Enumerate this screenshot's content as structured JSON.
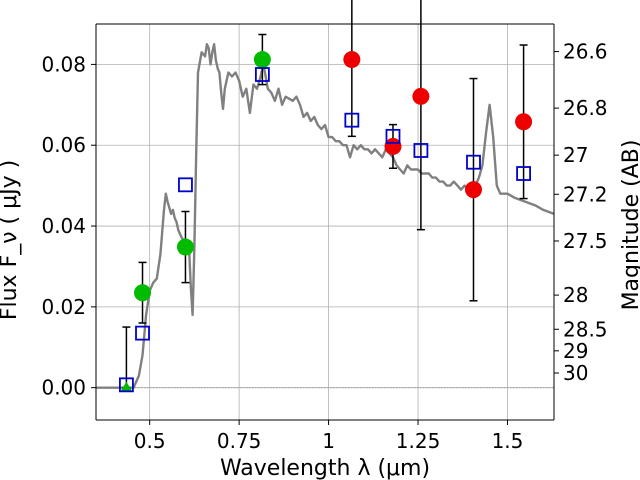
{
  "chart_data": {
    "type": "scatter",
    "title": "",
    "xlabel": "Wavelength  λ (μm)",
    "ylabel": "Flux  F_ν  ( μJy )",
    "ylabel_right": "Magnitude (AB)",
    "xlim": [
      0.35,
      1.63
    ],
    "ylim": [
      -0.008,
      0.09
    ],
    "grid": true,
    "x_ticks": [
      {
        "value": 0.5,
        "label": "0.5"
      },
      {
        "value": 0.75,
        "label": "0.75"
      },
      {
        "value": 1.0,
        "label": "1"
      },
      {
        "value": 1.25,
        "label": "1.25"
      },
      {
        "value": 1.5,
        "label": "1.5"
      }
    ],
    "y_ticks": [
      {
        "value": 0.0,
        "label": "0.00"
      },
      {
        "value": 0.02,
        "label": "0.02"
      },
      {
        "value": 0.04,
        "label": "0.04"
      },
      {
        "value": 0.06,
        "label": "0.06"
      },
      {
        "value": 0.08,
        "label": "0.08"
      }
    ],
    "right_ticks": [
      {
        "mag": 26.6,
        "label": "26.6"
      },
      {
        "mag": 26.8,
        "label": "26.8"
      },
      {
        "mag": 27.0,
        "label": "27"
      },
      {
        "mag": 27.2,
        "label": "27.2"
      },
      {
        "mag": 27.5,
        "label": "27.5"
      },
      {
        "mag": 28.0,
        "label": "28"
      },
      {
        "mag": 28.5,
        "label": "28.5"
      },
      {
        "mag": 29.0,
        "label": "29"
      },
      {
        "mag": 30.0,
        "label": "30"
      }
    ],
    "model_sed": {
      "name": "model SED",
      "color": "#808080",
      "points": [
        [
          0.35,
          0.0
        ],
        [
          0.44,
          0.0
        ],
        [
          0.455,
          0.0
        ],
        [
          0.47,
          0.003
        ],
        [
          0.48,
          0.008
        ],
        [
          0.49,
          0.018
        ],
        [
          0.5,
          0.024
        ],
        [
          0.51,
          0.026
        ],
        [
          0.52,
          0.027
        ],
        [
          0.53,
          0.033
        ],
        [
          0.54,
          0.044
        ],
        [
          0.545,
          0.048
        ],
        [
          0.55,
          0.046
        ],
        [
          0.56,
          0.043
        ],
        [
          0.565,
          0.044
        ],
        [
          0.57,
          0.042
        ],
        [
          0.575,
          0.041
        ],
        [
          0.58,
          0.039
        ],
        [
          0.585,
          0.038
        ],
        [
          0.59,
          0.037
        ],
        [
          0.6,
          0.036
        ],
        [
          0.61,
          0.035
        ],
        [
          0.615,
          0.025
        ],
        [
          0.62,
          0.018
        ],
        [
          0.625,
          0.035
        ],
        [
          0.63,
          0.058
        ],
        [
          0.635,
          0.078
        ],
        [
          0.645,
          0.083
        ],
        [
          0.655,
          0.082
        ],
        [
          0.66,
          0.085
        ],
        [
          0.665,
          0.084
        ],
        [
          0.67,
          0.08
        ],
        [
          0.675,
          0.083
        ],
        [
          0.68,
          0.085
        ],
        [
          0.685,
          0.081
        ],
        [
          0.69,
          0.079
        ],
        [
          0.695,
          0.078
        ],
        [
          0.7,
          0.073
        ],
        [
          0.705,
          0.069
        ],
        [
          0.71,
          0.074
        ],
        [
          0.72,
          0.078
        ],
        [
          0.73,
          0.077
        ],
        [
          0.74,
          0.078
        ],
        [
          0.75,
          0.076
        ],
        [
          0.76,
          0.072
        ],
        [
          0.77,
          0.074
        ],
        [
          0.78,
          0.068
        ],
        [
          0.79,
          0.075
        ],
        [
          0.8,
          0.074
        ],
        [
          0.81,
          0.077
        ],
        [
          0.815,
          0.079
        ],
        [
          0.82,
          0.079
        ],
        [
          0.83,
          0.074
        ],
        [
          0.84,
          0.073
        ],
        [
          0.85,
          0.071
        ],
        [
          0.86,
          0.074
        ],
        [
          0.87,
          0.07
        ],
        [
          0.88,
          0.072
        ],
        [
          0.9,
          0.071
        ],
        [
          0.91,
          0.072
        ],
        [
          0.92,
          0.07
        ],
        [
          0.93,
          0.067
        ],
        [
          0.94,
          0.068
        ],
        [
          0.95,
          0.066
        ],
        [
          0.96,
          0.067
        ],
        [
          0.97,
          0.065
        ],
        [
          0.98,
          0.064
        ],
        [
          0.99,
          0.065
        ],
        [
          1.0,
          0.062
        ],
        [
          1.01,
          0.062
        ],
        [
          1.02,
          0.061
        ],
        [
          1.03,
          0.061
        ],
        [
          1.04,
          0.06
        ],
        [
          1.05,
          0.06
        ],
        [
          1.06,
          0.057
        ],
        [
          1.07,
          0.06
        ],
        [
          1.08,
          0.059
        ],
        [
          1.09,
          0.06
        ],
        [
          1.1,
          0.059
        ],
        [
          1.11,
          0.059
        ],
        [
          1.12,
          0.058
        ],
        [
          1.13,
          0.059
        ],
        [
          1.14,
          0.058
        ],
        [
          1.15,
          0.057
        ],
        [
          1.16,
          0.059
        ],
        [
          1.17,
          0.058
        ],
        [
          1.18,
          0.057
        ],
        [
          1.19,
          0.055
        ],
        [
          1.2,
          0.054
        ],
        [
          1.21,
          0.053
        ],
        [
          1.22,
          0.055
        ],
        [
          1.23,
          0.054
        ],
        [
          1.24,
          0.054
        ],
        [
          1.25,
          0.054
        ],
        [
          1.26,
          0.053
        ],
        [
          1.27,
          0.053
        ],
        [
          1.28,
          0.053
        ],
        [
          1.29,
          0.052
        ],
        [
          1.3,
          0.052
        ],
        [
          1.31,
          0.051
        ],
        [
          1.32,
          0.051
        ],
        [
          1.33,
          0.05
        ],
        [
          1.34,
          0.05
        ],
        [
          1.35,
          0.051
        ],
        [
          1.36,
          0.05
        ],
        [
          1.37,
          0.049
        ],
        [
          1.38,
          0.05
        ],
        [
          1.39,
          0.049
        ],
        [
          1.4,
          0.049
        ],
        [
          1.41,
          0.05
        ],
        [
          1.42,
          0.052
        ],
        [
          1.43,
          0.055
        ],
        [
          1.44,
          0.063
        ],
        [
          1.45,
          0.07
        ],
        [
          1.46,
          0.062
        ],
        [
          1.47,
          0.05
        ],
        [
          1.48,
          0.048
        ],
        [
          1.5,
          0.048
        ],
        [
          1.52,
          0.047
        ],
        [
          1.55,
          0.046
        ],
        [
          1.58,
          0.045
        ],
        [
          1.6,
          0.044
        ],
        [
          1.63,
          0.043
        ]
      ]
    },
    "series": [
      {
        "name": "green detections",
        "marker": "circle",
        "color": "#00bb00",
        "points": [
          {
            "x": 0.48,
            "y": 0.0235,
            "err": 0.0075
          },
          {
            "x": 0.6,
            "y": 0.0348,
            "err": 0.0088
          },
          {
            "x": 0.815,
            "y": 0.0812,
            "err": 0.0062
          }
        ]
      },
      {
        "name": "green upper limit",
        "marker": "triangle",
        "color": "#00bb00",
        "points": [
          {
            "x": 0.435,
            "y": 0.0,
            "err": 0.0
          }
        ]
      },
      {
        "name": "red detections",
        "marker": "circle",
        "color": "#ee0000",
        "points": [
          {
            "x": 1.065,
            "y": 0.0812,
            "err": 0.019
          },
          {
            "x": 1.18,
            "y": 0.0597,
            "err": 0.0054
          },
          {
            "x": 1.258,
            "y": 0.0721,
            "err": 0.033
          },
          {
            "x": 1.405,
            "y": 0.049,
            "err": 0.0275
          },
          {
            "x": 1.545,
            "y": 0.0658,
            "err": 0.019
          }
        ]
      },
      {
        "name": "model photometry",
        "marker": "square",
        "color": "#0000cc",
        "points": [
          {
            "x": 0.435,
            "y": 0.0007
          },
          {
            "x": 0.48,
            "y": 0.0135
          },
          {
            "x": 0.6,
            "y": 0.0502
          },
          {
            "x": 0.815,
            "y": 0.0775
          },
          {
            "x": 1.065,
            "y": 0.0662
          },
          {
            "x": 1.18,
            "y": 0.0622
          },
          {
            "x": 1.258,
            "y": 0.0587
          },
          {
            "x": 1.405,
            "y": 0.0558
          },
          {
            "x": 1.545,
            "y": 0.053
          }
        ]
      }
    ],
    "first_detection_errorbar": {
      "x": 0.435,
      "low": 0.0,
      "high": 0.015
    }
  }
}
